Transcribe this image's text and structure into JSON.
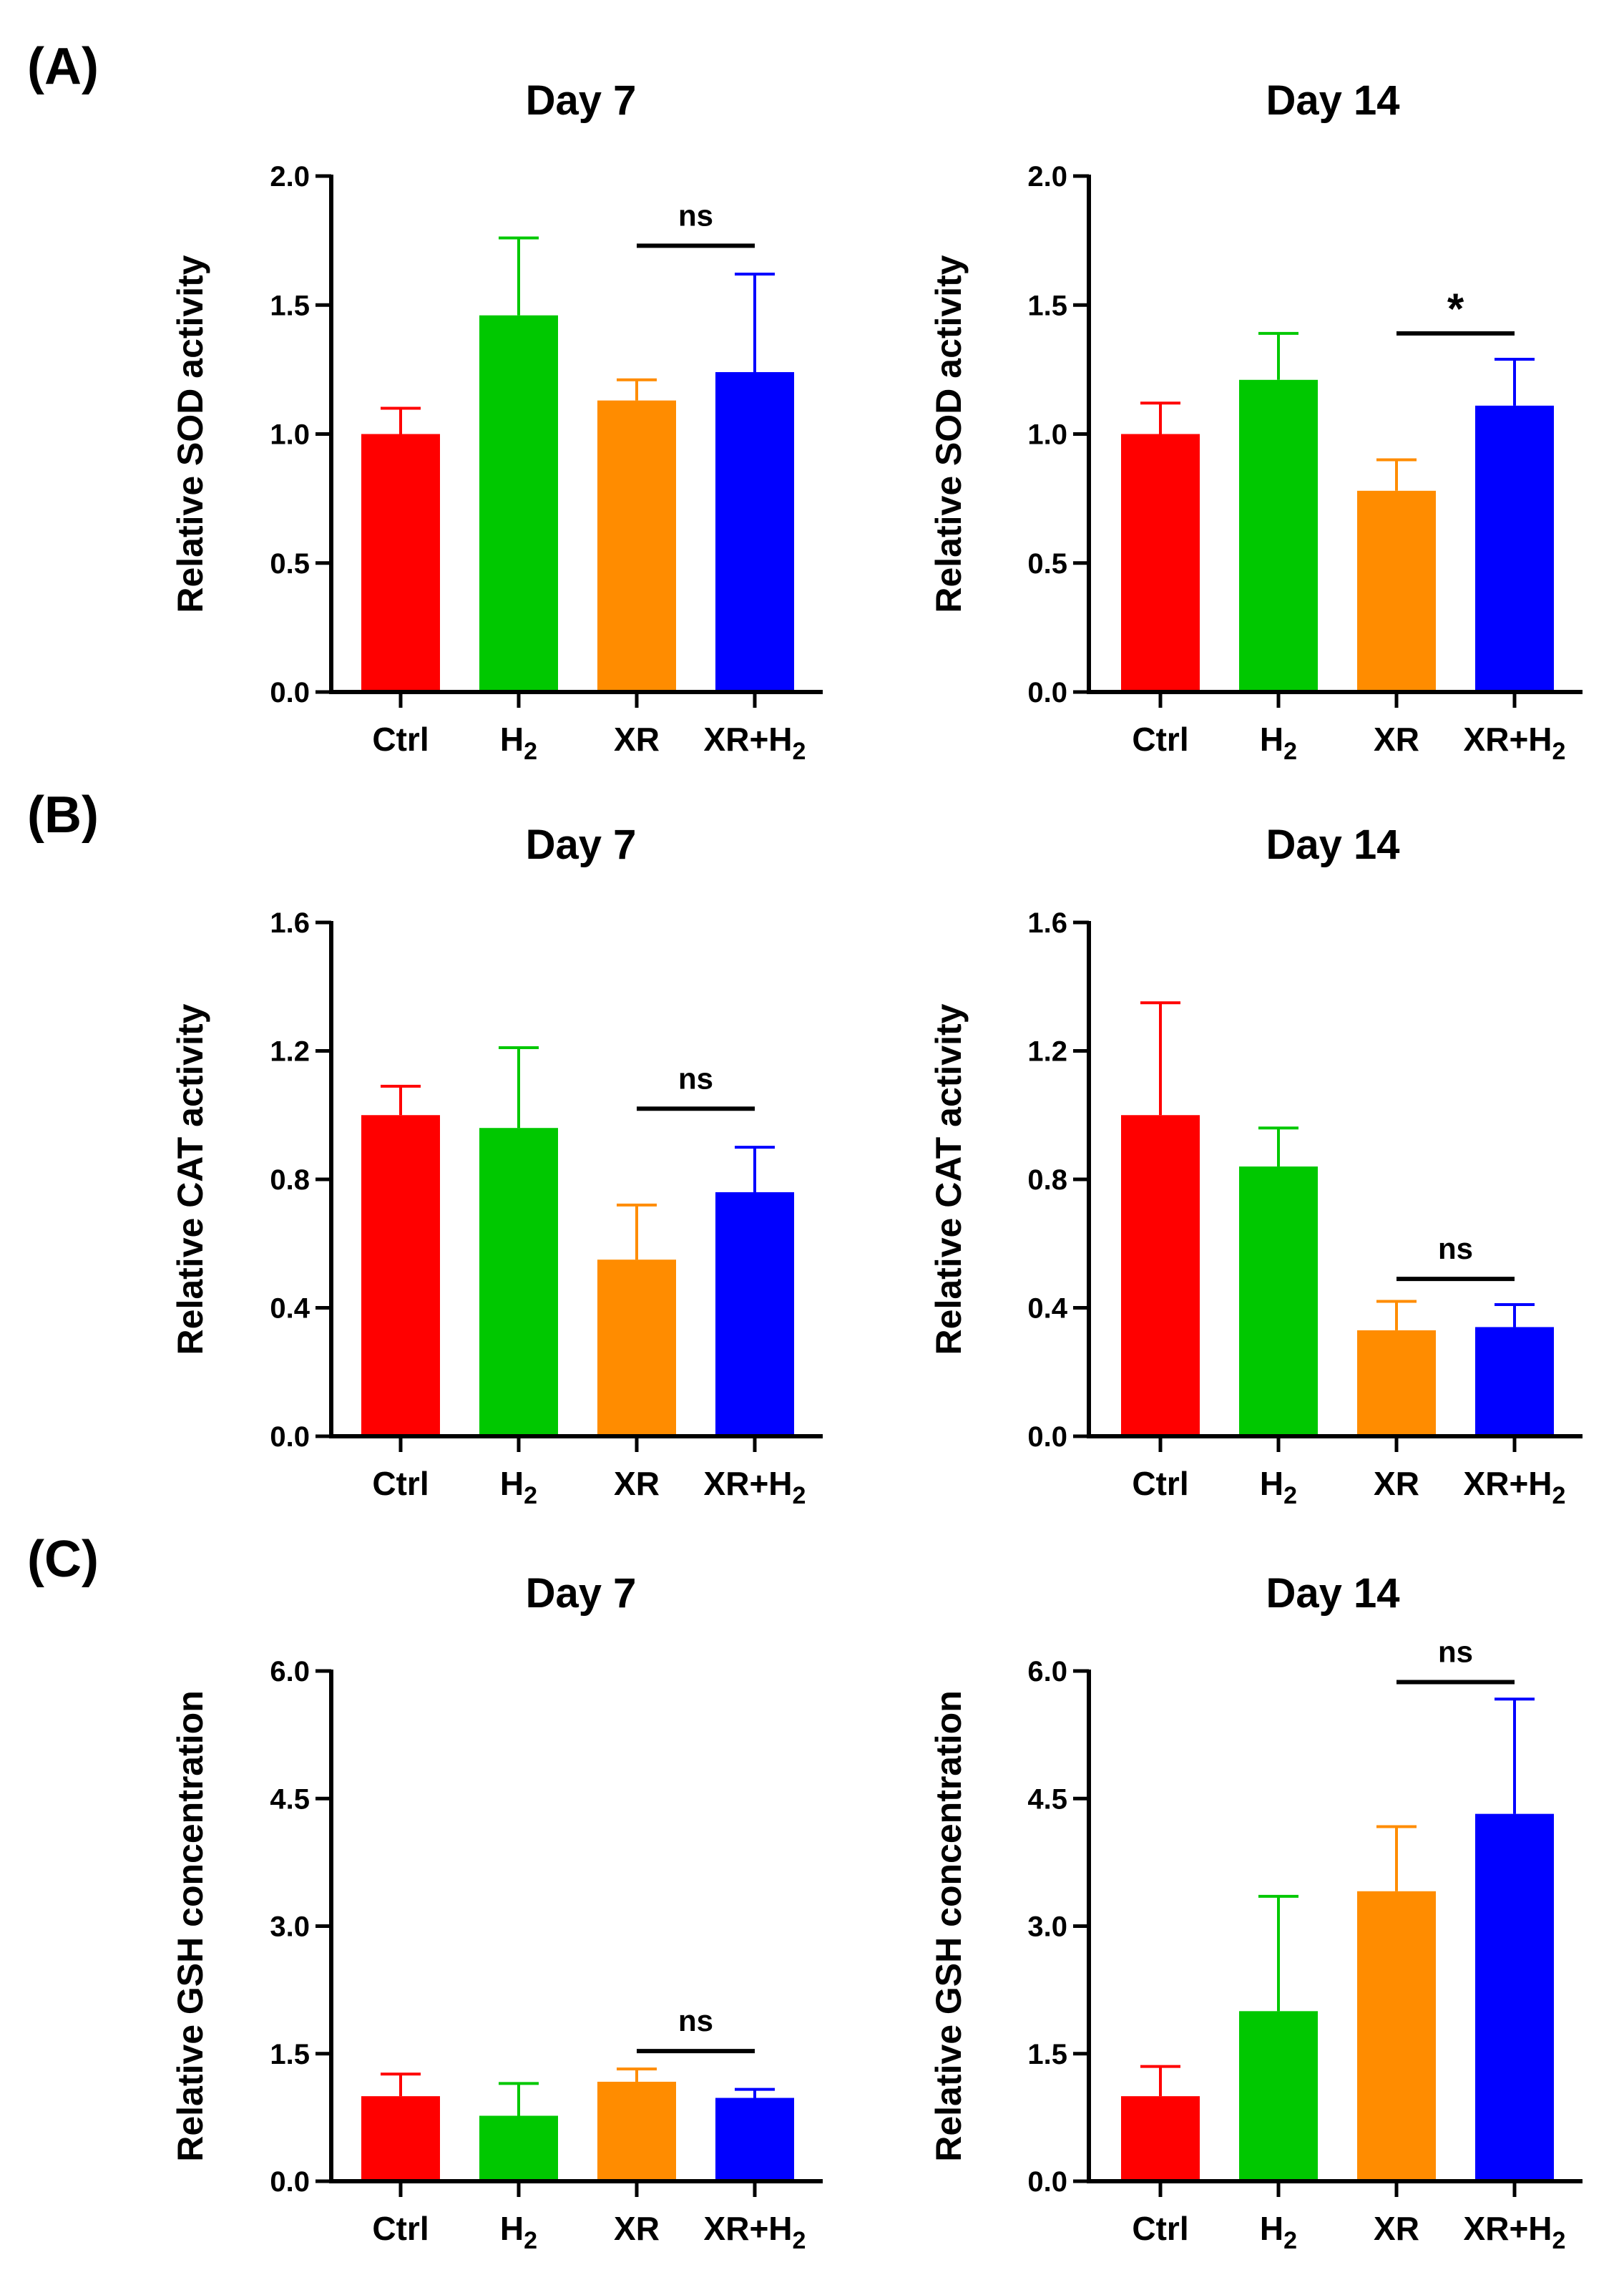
{
  "panel_labels": [
    "(A)",
    "(B)",
    "(C)"
  ],
  "chart_data": [
    {
      "type": "bar",
      "panel": "(A)",
      "title": "Day 7",
      "xlabel": "",
      "ylabel": "Relative SOD activity",
      "categories": [
        "Ctrl",
        "H2",
        "XR",
        "XR+H2"
      ],
      "values": [
        1.0,
        1.46,
        1.13,
        1.24
      ],
      "errors": [
        0.1,
        0.3,
        0.08,
        0.38
      ],
      "colors": [
        "#ff0000",
        "#00c800",
        "#ff8c00",
        "#0000ff"
      ],
      "ylim": [
        0,
        2.0
      ],
      "yticks": [
        0.0,
        0.5,
        1.0,
        1.5,
        2.0
      ],
      "ytick_labels": [
        "0.0",
        "0.5",
        "1.0",
        "1.5",
        "2.0"
      ],
      "annotations": [
        {
          "from": "XR",
          "to": "XR+H2",
          "text": "ns",
          "y": 1.73
        }
      ]
    },
    {
      "type": "bar",
      "panel": "(A)",
      "title": "Day 14",
      "xlabel": "",
      "ylabel": "Relative SOD activity",
      "categories": [
        "Ctrl",
        "H2",
        "XR",
        "XR+H2"
      ],
      "values": [
        1.0,
        1.21,
        0.78,
        1.11
      ],
      "errors": [
        0.12,
        0.18,
        0.12,
        0.18
      ],
      "colors": [
        "#ff0000",
        "#00c800",
        "#ff8c00",
        "#0000ff"
      ],
      "ylim": [
        0,
        2.0
      ],
      "yticks": [
        0.0,
        0.5,
        1.0,
        1.5,
        2.0
      ],
      "ytick_labels": [
        "0.0",
        "0.5",
        "1.0",
        "1.5",
        "2.0"
      ],
      "annotations": [
        {
          "from": "XR",
          "to": "XR+H2",
          "text": "*",
          "y": 1.39
        }
      ]
    },
    {
      "type": "bar",
      "panel": "(B)",
      "title": "Day 7",
      "xlabel": "",
      "ylabel": "Relative CAT activity",
      "categories": [
        "Ctrl",
        "H2",
        "XR",
        "XR+H2"
      ],
      "values": [
        1.0,
        0.96,
        0.55,
        0.76
      ],
      "errors": [
        0.09,
        0.25,
        0.17,
        0.14
      ],
      "colors": [
        "#ff0000",
        "#00c800",
        "#ff8c00",
        "#0000ff"
      ],
      "ylim": [
        0,
        1.6
      ],
      "yticks": [
        0.0,
        0.4,
        0.8,
        1.2,
        1.6
      ],
      "ytick_labels": [
        "0.0",
        "0.4",
        "0.8",
        "1.2",
        "1.6"
      ],
      "annotations": [
        {
          "from": "XR",
          "to": "XR+H2",
          "text": "ns",
          "y": 1.02
        }
      ]
    },
    {
      "type": "bar",
      "panel": "(B)",
      "title": "Day 14",
      "xlabel": "",
      "ylabel": "Relative CAT activity",
      "categories": [
        "Ctrl",
        "H2",
        "XR",
        "XR+H2"
      ],
      "values": [
        1.0,
        0.84,
        0.33,
        0.34
      ],
      "errors": [
        0.35,
        0.12,
        0.09,
        0.07
      ],
      "colors": [
        "#ff0000",
        "#00c800",
        "#ff8c00",
        "#0000ff"
      ],
      "ylim": [
        0,
        1.6
      ],
      "yticks": [
        0.0,
        0.4,
        0.8,
        1.2,
        1.6
      ],
      "ytick_labels": [
        "0.0",
        "0.4",
        "0.8",
        "1.2",
        "1.6"
      ],
      "annotations": [
        {
          "from": "XR",
          "to": "XR+H2",
          "text": "ns",
          "y": 0.49
        }
      ]
    },
    {
      "type": "bar",
      "panel": "(C)",
      "title": "Day 7",
      "xlabel": "",
      "ylabel": "Relative GSH concentration",
      "categories": [
        "Ctrl",
        "H2",
        "XR",
        "XR+H2"
      ],
      "values": [
        1.0,
        0.77,
        1.17,
        0.98
      ],
      "errors": [
        0.26,
        0.38,
        0.15,
        0.1
      ],
      "colors": [
        "#ff0000",
        "#00c800",
        "#ff8c00",
        "#0000ff"
      ],
      "ylim": [
        0,
        6.0
      ],
      "yticks": [
        0.0,
        1.5,
        3.0,
        4.5,
        6.0
      ],
      "ytick_labels": [
        "0.0",
        "1.5",
        "3.0",
        "4.5",
        "6.0"
      ],
      "annotations": [
        {
          "from": "XR",
          "to": "XR+H2",
          "text": "ns",
          "y": 1.53
        }
      ]
    },
    {
      "type": "bar",
      "panel": "(C)",
      "title": "Day 14",
      "xlabel": "",
      "ylabel": "Relative GSH concentration",
      "categories": [
        "Ctrl",
        "H2",
        "XR",
        "XR+H2"
      ],
      "values": [
        1.0,
        2.0,
        3.41,
        4.32
      ],
      "errors": [
        0.35,
        1.35,
        0.76,
        1.35
      ],
      "colors": [
        "#ff0000",
        "#00c800",
        "#ff8c00",
        "#0000ff"
      ],
      "ylim": [
        0,
        6.0
      ],
      "yticks": [
        0.0,
        1.5,
        3.0,
        4.5,
        6.0
      ],
      "ytick_labels": [
        "0.0",
        "1.5",
        "3.0",
        "4.5",
        "6.0"
      ],
      "annotations": [
        {
          "from": "XR",
          "to": "XR+H2",
          "text": "ns",
          "y": 5.87
        }
      ]
    }
  ]
}
